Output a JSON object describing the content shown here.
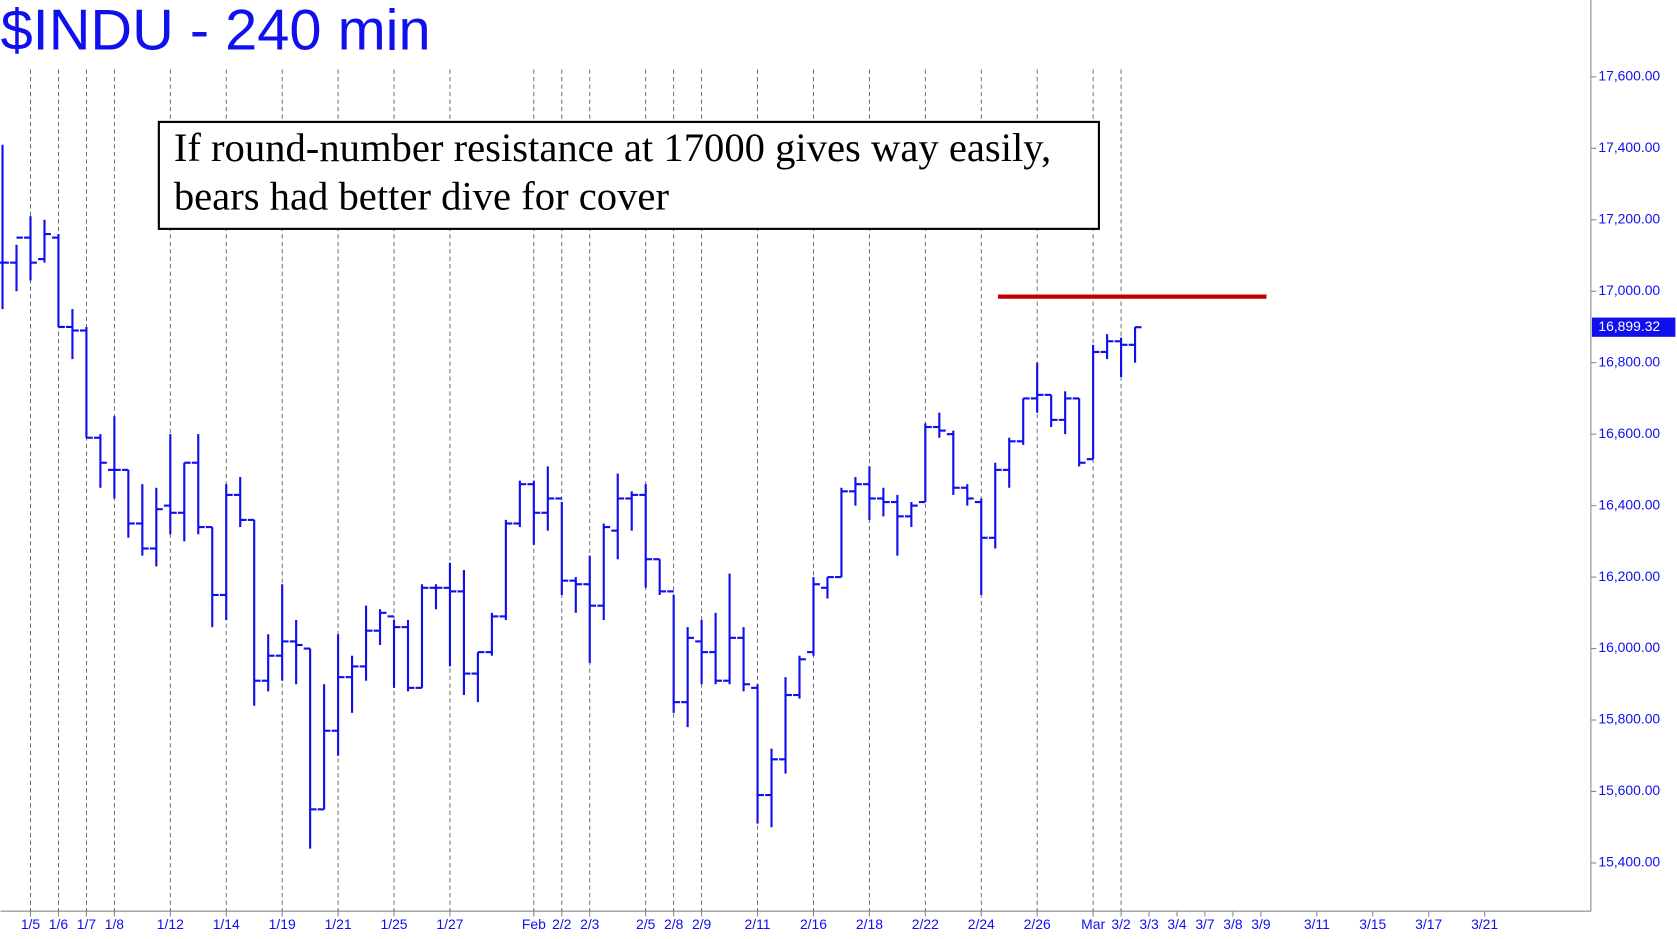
{
  "chart_data": {
    "type": "ohlc",
    "title": "$INDU - 240 min",
    "annotation": [
      "If round-number resistance at 17000 gives way easily,",
      "bears had better dive for cover"
    ],
    "color": "#1010ee",
    "x": [
      -1,
      -0.5,
      0,
      0.5,
      1,
      1.5,
      2,
      2.5,
      3,
      3.5,
      4,
      4.5,
      5,
      5.5,
      6,
      6.5,
      7,
      7.5,
      8,
      8.5,
      9,
      9.5,
      10,
      10.5,
      11,
      11.5,
      12,
      12.5,
      13,
      13.5,
      14,
      14.5,
      15,
      15.5,
      16,
      16.5,
      17,
      17.5,
      18,
      18.5,
      19,
      19.5,
      20,
      20.5,
      21,
      21.5,
      22,
      22.5,
      23,
      23.5,
      24,
      24.5,
      25,
      25.5,
      26,
      26.5,
      27,
      27.5,
      28,
      28.5,
      29,
      29.5,
      30,
      30.5,
      31,
      31.5,
      32,
      32.5,
      33,
      33.5,
      34,
      34.5,
      35,
      35.5,
      36,
      36.5,
      37,
      37.5,
      38,
      38.5,
      39,
      39.5
    ],
    "open": [
      17080,
      17080,
      17150,
      17090,
      17150,
      16900,
      16890,
      16590,
      16500,
      16500,
      16350,
      16280,
      16400,
      16380,
      16520,
      16340,
      16150,
      16430,
      16360,
      15910,
      15980,
      16020,
      16000,
      15550,
      15770,
      15920,
      15950,
      16050,
      16090,
      16060,
      15890,
      16170,
      16170,
      16160,
      15930,
      15990,
      16090,
      16350,
      16460,
      16380,
      16420,
      16190,
      16180,
      16120,
      16330,
      16420,
      16430,
      16250,
      16160,
      15850,
      16020,
      15990,
      15910,
      16030,
      15890,
      15590,
      15690,
      15870,
      15990,
      16170,
      16200,
      16440,
      16460,
      16420,
      16410,
      16370,
      16410,
      16620,
      16600,
      16450,
      16410,
      16310,
      16500,
      16580,
      16700,
      16710,
      16640,
      16700,
      16530,
      16830,
      16860,
      16850
    ],
    "high": [
      17410,
      17130,
      17210,
      17200,
      17160,
      16950,
      16900,
      16600,
      16650,
      16500,
      16460,
      16450,
      16600,
      16520,
      16600,
      16340,
      16460,
      16480,
      16360,
      16040,
      16180,
      16080,
      16000,
      15900,
      16040,
      15980,
      16120,
      16110,
      16080,
      16080,
      16180,
      16180,
      16240,
      16220,
      15990,
      16100,
      16360,
      16470,
      16470,
      16510,
      16410,
      16200,
      16260,
      16350,
      16490,
      16440,
      16460,
      16250,
      16150,
      16060,
      16080,
      16100,
      16210,
      16060,
      15900,
      15720,
      15920,
      15980,
      16200,
      16200,
      16450,
      16480,
      16510,
      16450,
      16430,
      16410,
      16630,
      16660,
      16610,
      16460,
      16420,
      16520,
      16590,
      16700,
      16800,
      16710,
      16720,
      16700,
      16850,
      16880,
      16870,
      16900
    ],
    "low": [
      16950,
      17000,
      17030,
      17080,
      16900,
      16810,
      16590,
      16450,
      16420,
      16310,
      16260,
      16230,
      16320,
      16300,
      16320,
      16060,
      16080,
      16340,
      15840,
      15880,
      15910,
      15900,
      15440,
      15550,
      15700,
      15820,
      15910,
      16010,
      15890,
      15880,
      15890,
      16110,
      15950,
      15870,
      15850,
      15980,
      16080,
      16340,
      16290,
      16330,
      16150,
      16100,
      15960,
      16080,
      16250,
      16330,
      16170,
      16150,
      15820,
      15780,
      15900,
      15900,
      15900,
      15880,
      15510,
      15500,
      15650,
      15860,
      15980,
      16140,
      16200,
      16400,
      16360,
      16370,
      16260,
      16340,
      16410,
      16590,
      16430,
      16400,
      16150,
      16280,
      16450,
      16570,
      16660,
      16620,
      16600,
      16510,
      16530,
      16810,
      16760,
      16800
    ],
    "close": [
      17080,
      17150,
      17080,
      17160,
      16900,
      16890,
      16590,
      16520,
      16500,
      16350,
      16280,
      16390,
      16380,
      16520,
      16340,
      16150,
      16430,
      16360,
      15910,
      15980,
      16020,
      16010,
      15550,
      15770,
      15920,
      15950,
      16050,
      16100,
      16060,
      15890,
      16170,
      16170,
      16160,
      15930,
      15990,
      16090,
      16350,
      16460,
      16380,
      16420,
      16190,
      16180,
      16120,
      16340,
      16420,
      16430,
      16250,
      16160,
      15850,
      16030,
      15990,
      15910,
      16030,
      15900,
      15590,
      15690,
      15870,
      15970,
      16180,
      16200,
      16440,
      16460,
      16420,
      16410,
      16370,
      16400,
      16620,
      16610,
      16450,
      16420,
      16310,
      16500,
      16580,
      16700,
      16710,
      16640,
      16700,
      16520,
      16830,
      16860,
      16850,
      16899.32
    ],
    "last_price": {
      "value": 16899.32,
      "label": "16,899.32"
    },
    "resistance_line": {
      "value": 16985,
      "x": [
        34.6,
        44.2
      ],
      "color": "#c00000"
    },
    "xlim": [
      -1.07,
      55.8
    ],
    "ylim": [
      15265,
      17815
    ],
    "xticks": [
      {
        "value": 0,
        "label": "1/5"
      },
      {
        "value": 1,
        "label": "1/6"
      },
      {
        "value": 2,
        "label": "1/7"
      },
      {
        "value": 3,
        "label": "1/8"
      },
      {
        "value": 5,
        "label": "1/12"
      },
      {
        "value": 7,
        "label": "1/14"
      },
      {
        "value": 9,
        "label": "1/19"
      },
      {
        "value": 11,
        "label": "1/21"
      },
      {
        "value": 13,
        "label": "1/25"
      },
      {
        "value": 15,
        "label": "1/27"
      },
      {
        "value": 18,
        "label": "Feb"
      },
      {
        "value": 19,
        "label": "2/2"
      },
      {
        "value": 20,
        "label": "2/3"
      },
      {
        "value": 22,
        "label": "2/5"
      },
      {
        "value": 23,
        "label": "2/8"
      },
      {
        "value": 24,
        "label": "2/9"
      },
      {
        "value": 26,
        "label": "2/11"
      },
      {
        "value": 28,
        "label": "2/16"
      },
      {
        "value": 30,
        "label": "2/18"
      },
      {
        "value": 32,
        "label": "2/22"
      },
      {
        "value": 34,
        "label": "2/24"
      },
      {
        "value": 36,
        "label": "2/26"
      },
      {
        "value": 38,
        "label": "Mar"
      },
      {
        "value": 39,
        "label": "3/2"
      },
      {
        "value": 40,
        "label": "3/3"
      },
      {
        "value": 41,
        "label": "3/4"
      },
      {
        "value": 42,
        "label": "3/7"
      },
      {
        "value": 43,
        "label": "3/8"
      },
      {
        "value": 44,
        "label": "3/9"
      },
      {
        "value": 46,
        "label": "3/11"
      },
      {
        "value": 48,
        "label": "3/15"
      },
      {
        "value": 50,
        "label": "3/17"
      },
      {
        "value": 52,
        "label": "3/21"
      }
    ],
    "yticks": [
      {
        "value": 15400,
        "label": "15,400.00"
      },
      {
        "value": 15600,
        "label": "15,600.00"
      },
      {
        "value": 15800,
        "label": "15,800.00"
      },
      {
        "value": 16000,
        "label": "16,000.00"
      },
      {
        "value": 16200,
        "label": "16,200.00"
      },
      {
        "value": 16400,
        "label": "16,400.00"
      },
      {
        "value": 16600,
        "label": "16,600.00"
      },
      {
        "value": 16800,
        "label": "16,800.00"
      },
      {
        "value": 17000,
        "label": "17,000.00"
      },
      {
        "value": 17200,
        "label": "17,200.00"
      },
      {
        "value": 17400,
        "label": "17,400.00"
      },
      {
        "value": 17600,
        "label": "17,600.00"
      }
    ],
    "grid": true
  }
}
